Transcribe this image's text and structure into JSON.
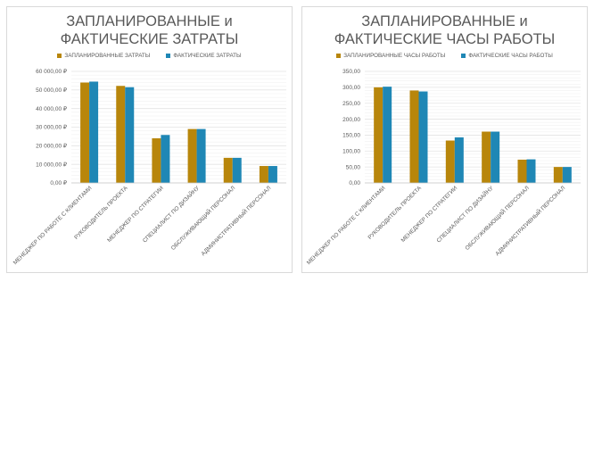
{
  "colors": {
    "planned": "#b8860b",
    "actual": "#1f87b5",
    "grid": "#e3e3e3",
    "text": "#595959"
  },
  "chart_data": [
    {
      "type": "bar",
      "title_line1": "ЗАПЛАНИРОВАННЫЕ и",
      "title_line2": "ФАКТИЧЕСКИЕ ЗАТРАТЫ",
      "legend_position": "top",
      "grid": true,
      "categories": [
        "МЕНЕДЖЕР ПО РАБОТЕ С КЛИЕНТАМИ",
        "РУКОВОДИТЕЛЬ ПРОЕКТА",
        "МЕНЕДЖЕР ПО СТРАТЕГИИ",
        "СПЕЦИАЛИСТ ПО ДИЗАЙНУ",
        "ОБСЛУЖИВАЮЩИЙ ПЕРСОНАЛ",
        "АДМИНИСТРАТИВНЫЙ ПЕРСОНАЛ"
      ],
      "series": [
        {
          "name": "ЗАПЛАНИРОВАННЫЕ ЗАТРАТЫ",
          "values": [
            54000,
            52200,
            24000,
            29000,
            13500,
            9100
          ]
        },
        {
          "name": "ФАКТИЧЕСКИЕ ЗАТРАТЫ",
          "values": [
            54500,
            51500,
            25800,
            29000,
            13500,
            9100
          ]
        }
      ],
      "ylim": [
        0,
        60000
      ],
      "yticks": [
        0,
        10000,
        20000,
        30000,
        40000,
        50000,
        60000
      ],
      "ytick_labels": [
        "0,00 ₽",
        "10 000,00 ₽",
        "20 000,00 ₽",
        "30 000,00 ₽",
        "40 000,00 ₽",
        "50 000,00 ₽",
        "60 000,00 ₽"
      ]
    },
    {
      "type": "bar",
      "title_line1": "ЗАПЛАНИРОВАННЫЕ и",
      "title_line2": "ФАКТИЧЕСКИЕ ЧАСЫ РАБОТЫ",
      "legend_position": "top",
      "grid": true,
      "categories": [
        "МЕНЕДЖЕР ПО РАБОТЕ С КЛИЕНТАМИ",
        "РУКОВОДИТЕЛЬ ПРОЕКТА",
        "МЕНЕДЖЕР ПО СТРАТЕГИИ",
        "СПЕЦИАЛИСТ ПО ДИЗАЙНУ",
        "ОБСЛУЖИВАЮЩИЙ ПЕРСОНАЛ",
        "АДМИНИСТРАТИВНЫЙ ПЕРСОНАЛ"
      ],
      "series": [
        {
          "name": "ЗАПЛАНИРОВАННЫЕ ЧАСЫ РАБОТЫ",
          "values": [
            300,
            290,
            133,
            161,
            73,
            50
          ]
        },
        {
          "name": "ФАКТИЧЕСКИЕ ЧАСЫ РАБОТЫ",
          "values": [
            302,
            287,
            143,
            161,
            74,
            50
          ]
        }
      ],
      "ylim": [
        0,
        350
      ],
      "yticks": [
        0,
        50,
        100,
        150,
        200,
        250,
        300,
        350
      ],
      "ytick_labels": [
        "0,00",
        "50,00",
        "100,00",
        "150,00",
        "200,00",
        "250,00",
        "300,00",
        "350,00"
      ]
    }
  ]
}
